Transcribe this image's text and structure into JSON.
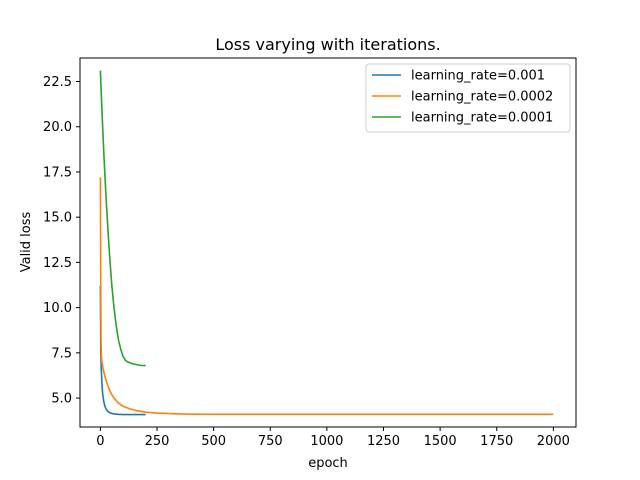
{
  "chart_data": {
    "type": "line",
    "title": "Loss varying with iterations.",
    "xlabel": "epoch",
    "ylabel": "Valid loss",
    "xlim": [
      -90,
      2100
    ],
    "ylim": [
      3.4,
      23.8
    ],
    "xticks": [
      0,
      250,
      500,
      750,
      1000,
      1250,
      1500,
      1750,
      2000
    ],
    "yticks": [
      5.0,
      7.5,
      10.0,
      12.5,
      15.0,
      17.5,
      20.0,
      22.5
    ],
    "xtick_labels": [
      "0",
      "250",
      "500",
      "750",
      "1000",
      "1250",
      "1500",
      "1750",
      "2000"
    ],
    "ytick_labels": [
      "5.0",
      "7.5",
      "10.0",
      "12.5",
      "15.0",
      "17.5",
      "20.0",
      "22.5"
    ],
    "grid": false,
    "legend_position": "top-right",
    "series": [
      {
        "name": "learning_rate=0.001",
        "color": "#1f77b4",
        "x": [
          0,
          1,
          2,
          4,
          6,
          8,
          10,
          15,
          20,
          25,
          30,
          40,
          50,
          60,
          80,
          100,
          150,
          200
        ],
        "y": [
          11.2,
          9.0,
          7.5,
          6.6,
          6.0,
          5.6,
          5.25,
          4.8,
          4.55,
          4.4,
          4.3,
          4.2,
          4.15,
          4.12,
          4.1,
          4.09,
          4.09,
          4.09
        ]
      },
      {
        "name": "learning_rate=0.0002",
        "color": "#ff7f0e",
        "x": [
          0,
          1,
          2,
          3,
          5,
          8,
          12,
          20,
          30,
          40,
          50,
          60,
          80,
          100,
          130,
          160,
          200,
          250,
          300,
          400,
          500,
          600,
          800,
          1000,
          1250,
          1500,
          1750,
          2000
        ],
        "y": [
          17.2,
          13.5,
          10.0,
          8.0,
          7.2,
          6.9,
          6.6,
          6.2,
          5.8,
          5.45,
          5.2,
          5.0,
          4.72,
          4.55,
          4.4,
          4.3,
          4.22,
          4.17,
          4.14,
          4.11,
          4.1,
          4.1,
          4.1,
          4.1,
          4.1,
          4.1,
          4.1,
          4.1
        ]
      },
      {
        "name": "learning_rate=0.0001",
        "color": "#2ca02c",
        "x": [
          0,
          5,
          10,
          15,
          20,
          25,
          30,
          40,
          50,
          60,
          70,
          80,
          90,
          100,
          110,
          120,
          130,
          140,
          150,
          160,
          170,
          180,
          190,
          200
        ],
        "y": [
          23.1,
          21.5,
          20.0,
          18.6,
          17.3,
          16.1,
          15.0,
          13.0,
          11.3,
          10.0,
          9.0,
          8.2,
          7.7,
          7.3,
          7.1,
          7.0,
          6.95,
          6.9,
          6.87,
          6.85,
          6.82,
          6.8,
          6.8,
          6.8
        ]
      }
    ]
  }
}
